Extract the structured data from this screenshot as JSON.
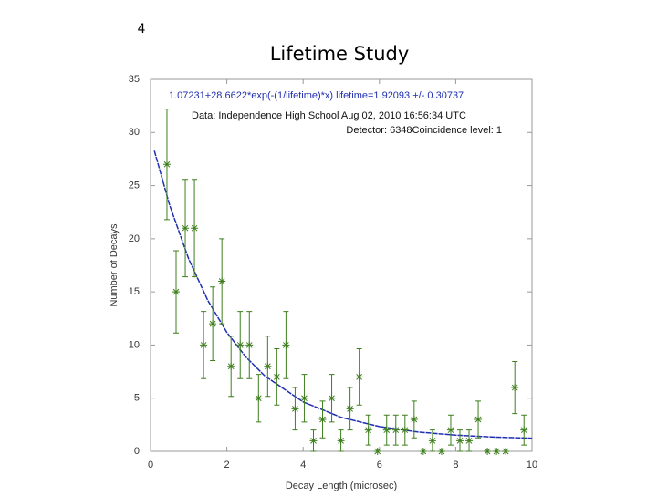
{
  "slide_number": "4",
  "chart_data": {
    "type": "scatter",
    "title": "Lifetime Study",
    "xlabel": "Decay Length (microsec)",
    "ylabel": "Number of Decays",
    "annotations": [
      "1.07231+28.6622*exp(-(1/lifetime)*x) lifetime=1.92093 +/- 0.30737",
      "Data: Independence High School Aug 02, 2010 16:56:34 UTC",
      "Detector: 6348Coincidence level: 1"
    ],
    "xlim": [
      0,
      10
    ],
    "ylim": [
      0,
      35
    ],
    "xticks": [
      0,
      2,
      4,
      6,
      8,
      10
    ],
    "yticks": [
      0,
      5,
      10,
      15,
      20,
      25,
      30,
      35
    ],
    "points": {
      "color": "#3f7f1f",
      "x": [
        0.43,
        0.67,
        0.91,
        1.15,
        1.39,
        1.63,
        1.87,
        2.11,
        2.35,
        2.59,
        2.83,
        3.07,
        3.31,
        3.55,
        3.79,
        4.03,
        4.27,
        4.51,
        4.75,
        4.99,
        5.23,
        5.47,
        5.71,
        5.95,
        6.19,
        6.43,
        6.67,
        6.91,
        7.15,
        7.39,
        7.63,
        7.87,
        8.11,
        8.35,
        8.59,
        8.83,
        9.07,
        9.31,
        9.55,
        9.79
      ],
      "y": [
        27,
        15,
        21,
        21,
        10,
        12,
        16,
        8,
        10,
        10,
        5,
        8,
        7,
        10,
        4,
        5,
        1,
        3,
        5,
        1,
        4,
        7,
        2,
        0,
        2,
        2,
        2,
        3,
        0,
        1,
        0,
        2,
        1,
        1,
        3,
        0,
        0,
        0,
        6,
        2
      ],
      "errors": [
        5.2,
        3.87,
        4.58,
        4.58,
        3.16,
        3.46,
        4,
        2.83,
        3.16,
        3.16,
        2.24,
        2.83,
        2.65,
        3.16,
        2,
        2.24,
        1,
        1.73,
        2.24,
        1,
        2,
        2.65,
        1.41,
        0,
        1.41,
        1.41,
        1.41,
        1.73,
        0,
        1,
        0,
        1.41,
        1,
        1,
        1.73,
        0,
        0,
        0,
        2.45,
        1.41
      ]
    },
    "fit": {
      "color": "#1f2fb0",
      "x": [
        0.1,
        0.5,
        1,
        1.5,
        2,
        2.5,
        3,
        4,
        5,
        6,
        7,
        8,
        9,
        10
      ],
      "y": [
        28.28,
        23.17,
        18.1,
        14.2,
        11.19,
        8.87,
        7.08,
        4.65,
        3.19,
        2.33,
        1.82,
        1.52,
        1.34,
        1.23
      ]
    }
  }
}
